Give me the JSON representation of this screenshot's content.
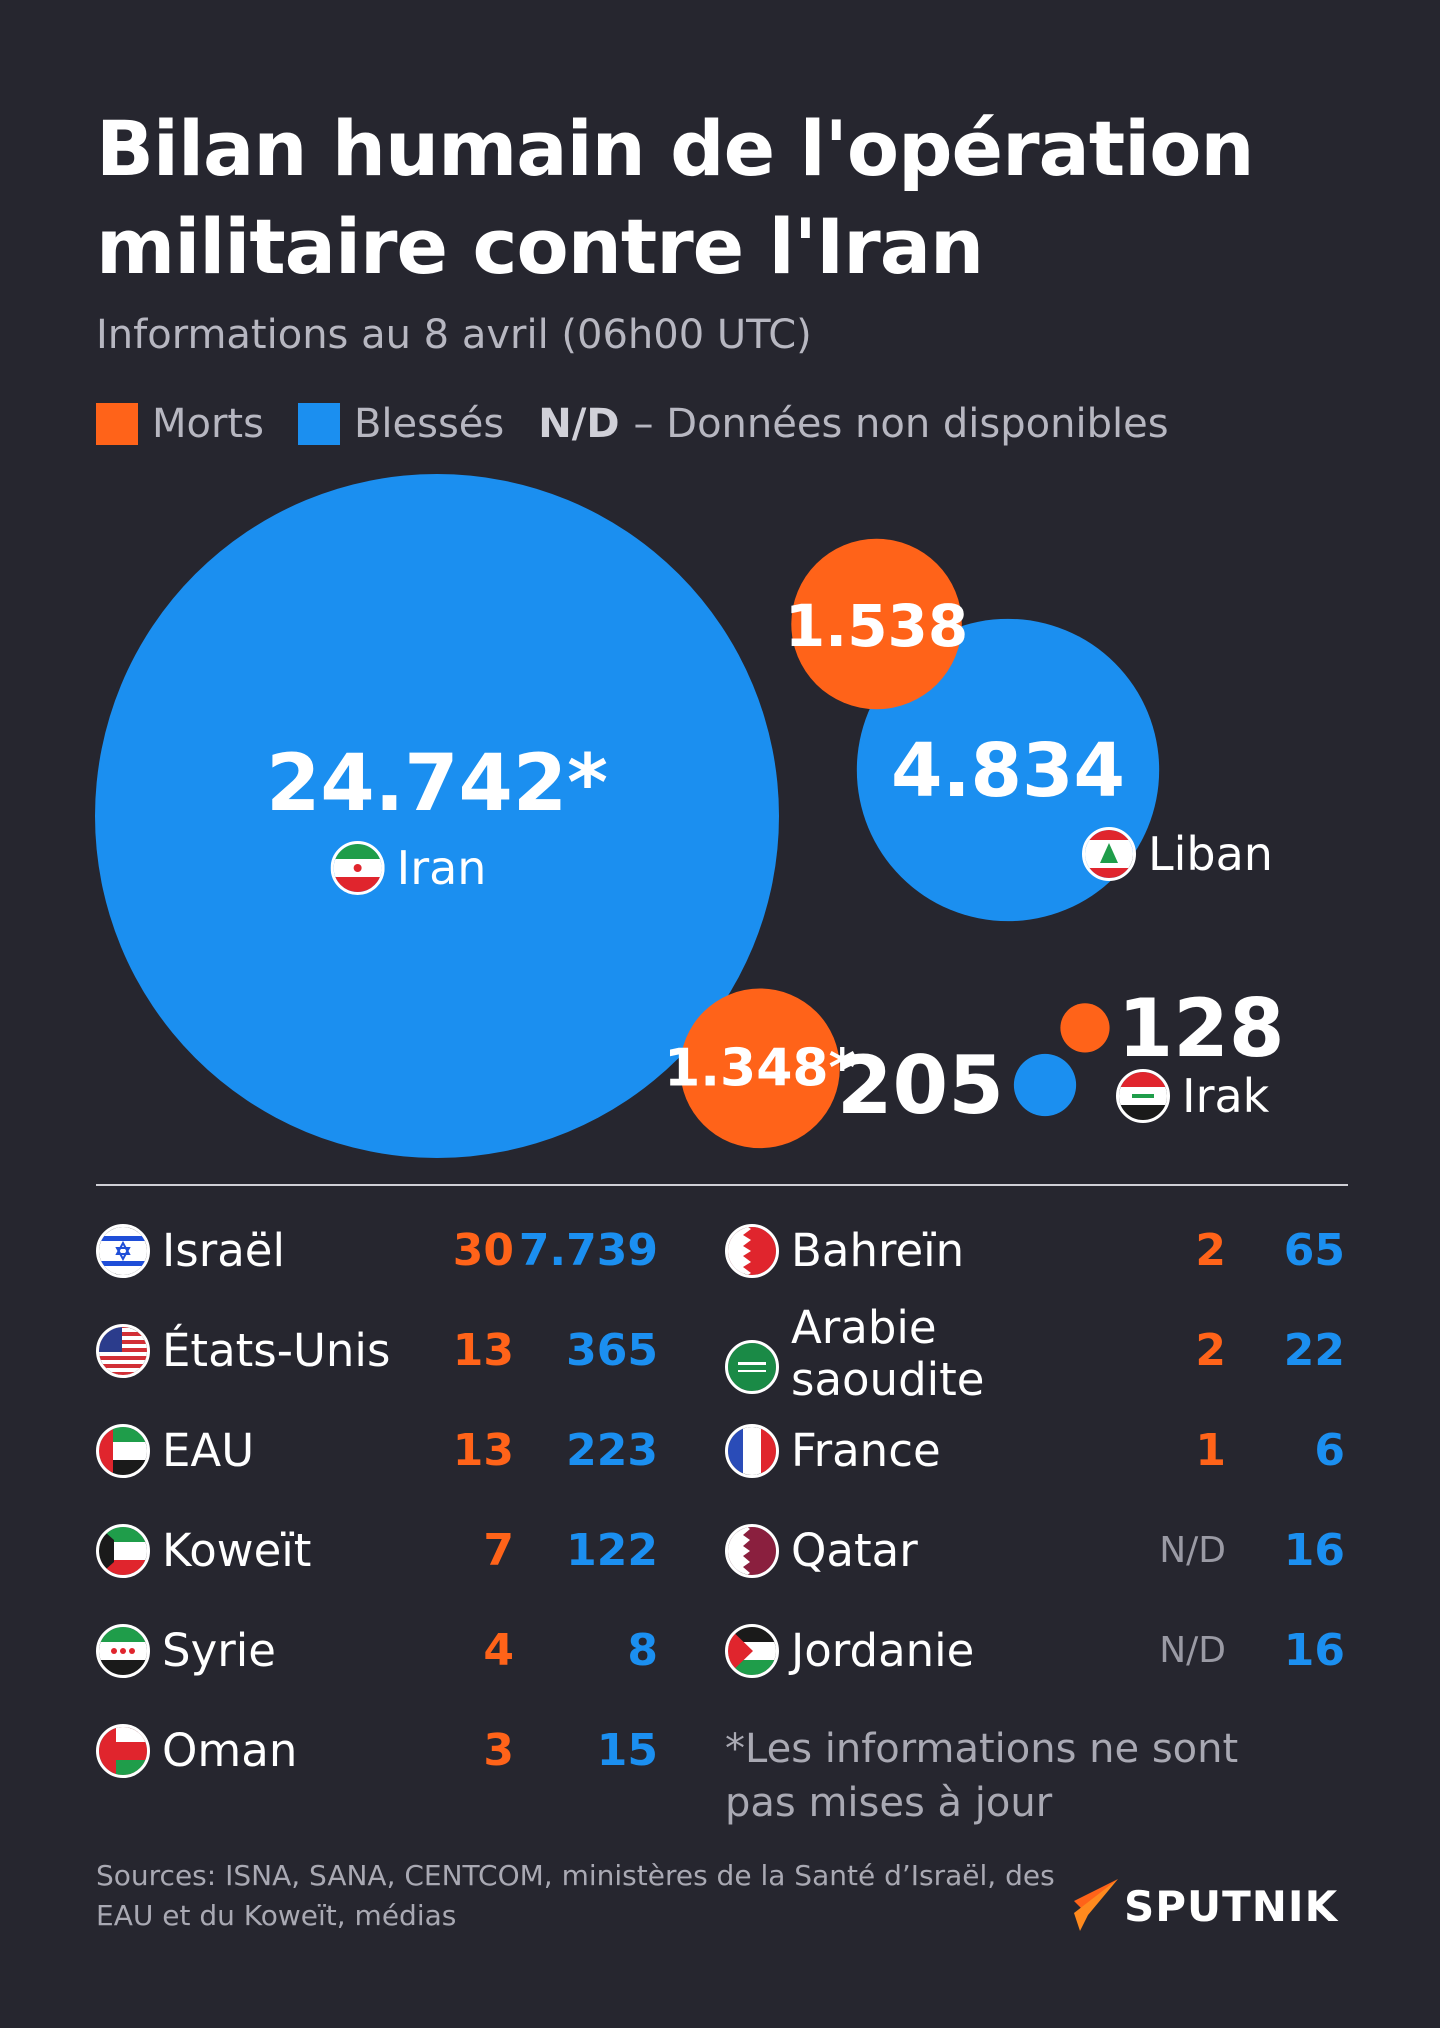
{
  "header": {
    "title": "Bilan humain de l'opération militaire contre l'Iran",
    "subtitle": "Informations au 8 avril (06h00 UTC)"
  },
  "legend": {
    "deaths": "Morts",
    "injured": "Blessés",
    "nd_key": "N/D",
    "nd_text": "– Données non disponibles"
  },
  "colors": {
    "background": "#26262f",
    "deaths": "#ff6319",
    "injured": "#1b8ff0"
  },
  "chart_data": {
    "type": "bubble",
    "series": [
      {
        "country": "Iran",
        "flag": "iran-flag-icon",
        "injured": 24742,
        "injured_label": "24.742*",
        "deaths": 1348,
        "deaths_label": "1.348*"
      },
      {
        "country": "Liban",
        "flag": "lebanon-flag-icon",
        "injured": 4834,
        "injured_label": "4.834",
        "deaths": 1538,
        "deaths_label": "1.538"
      },
      {
        "country": "Irak",
        "flag": "iraq-flag-icon",
        "injured": 205,
        "injured_label": "205",
        "deaths": 128,
        "deaths_label": "128"
      }
    ]
  },
  "table": {
    "left": [
      {
        "country": "Israël",
        "flag": "israel-flag-icon",
        "deaths": "30",
        "injured": "7.739"
      },
      {
        "country": "États-Unis",
        "flag": "usa-flag-icon",
        "deaths": "13",
        "injured": "365"
      },
      {
        "country": "EAU",
        "flag": "uae-flag-icon",
        "deaths": "13",
        "injured": "223"
      },
      {
        "country": "Koweït",
        "flag": "kuwait-flag-icon",
        "deaths": "7",
        "injured": "122"
      },
      {
        "country": "Syrie",
        "flag": "syria-flag-icon",
        "deaths": "4",
        "injured": "8"
      },
      {
        "country": "Oman",
        "flag": "oman-flag-icon",
        "deaths": "3",
        "injured": "15"
      }
    ],
    "right": [
      {
        "country": "Bahreïn",
        "flag": "bahrain-flag-icon",
        "deaths": "2",
        "injured": "65"
      },
      {
        "country": "Arabie saoudite",
        "flag": "saudi-flag-icon",
        "deaths": "2",
        "injured": "22"
      },
      {
        "country": "France",
        "flag": "france-flag-icon",
        "deaths": "1",
        "injured": "6"
      },
      {
        "country": "Qatar",
        "flag": "qatar-flag-icon",
        "deaths": "N/D",
        "injured": "16"
      },
      {
        "country": "Jordanie",
        "flag": "jordan-flag-icon",
        "deaths": "N/D",
        "injured": "16"
      }
    ]
  },
  "footnote": "*Les informations ne sont pas mises à jour",
  "sources": "Sources: ISNA, SANA, CENTCOM, ministères de la Santé d’Israël, des EAU et du Koweït, médias",
  "brand": {
    "name": "SPUTNIK",
    "icon": "sputnik-logo-icon"
  }
}
